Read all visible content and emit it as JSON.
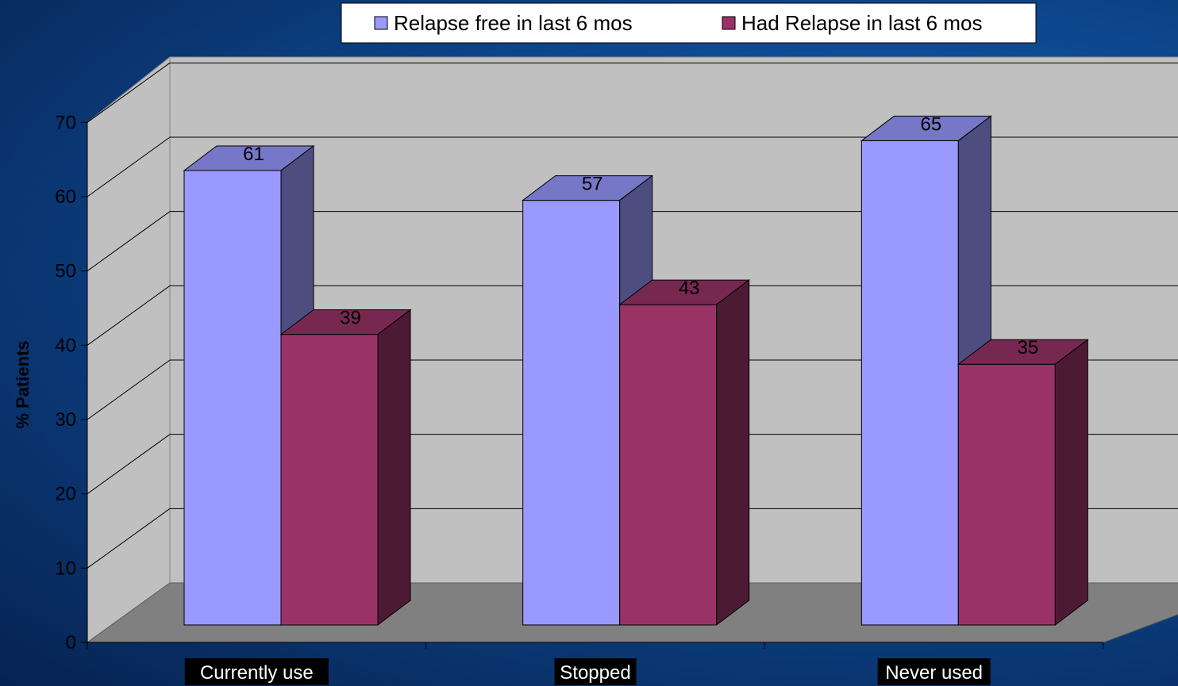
{
  "chart_data": {
    "type": "bar",
    "style": "3d-clustered-column",
    "categories": [
      "Currently use",
      "Stopped",
      "Never used"
    ],
    "series": [
      {
        "name": "Relapse free in last 6 mos",
        "values": [
          61,
          57,
          65
        ],
        "color": "#9999ff"
      },
      {
        "name": "Had Relapse in last 6 mos",
        "values": [
          39,
          43,
          35
        ],
        "color": "#993366"
      }
    ],
    "ylabel": "% Patients",
    "ylim": [
      0,
      70
    ],
    "yticks": [
      0,
      10,
      20,
      30,
      40,
      50,
      60,
      70
    ],
    "grid": true,
    "legend": "top-center",
    "data_labels": true
  }
}
